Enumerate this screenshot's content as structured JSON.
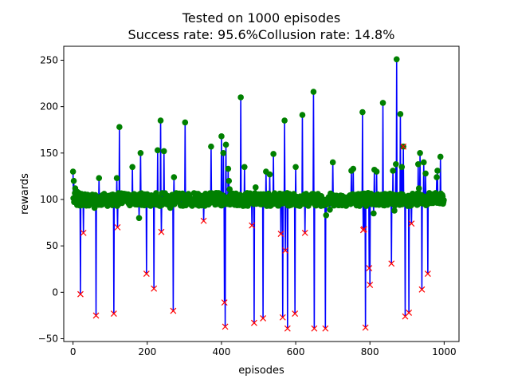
{
  "chart_data": {
    "type": "line",
    "title": [
      "Tested on 1000 episodes",
      "Success rate: 95.6%Collusion rate: 14.8%"
    ],
    "xlabel": "episodes",
    "ylabel": "rewards",
    "xlim": [
      -25,
      1040
    ],
    "ylim": [
      -53,
      265
    ],
    "xticks": [
      0,
      200,
      400,
      600,
      800,
      1000
    ],
    "yticks": [
      -50,
      0,
      50,
      100,
      150,
      200,
      250
    ],
    "grid": false,
    "colors": {
      "line": "#0000ff",
      "success": "#008000",
      "collision": "#ff0000"
    },
    "baseline_reward": 100,
    "spikes": [
      [
        0,
        130
      ],
      [
        2,
        120
      ],
      [
        6,
        112
      ],
      [
        12,
        108
      ],
      [
        20,
        -2
      ],
      [
        30,
        105
      ],
      [
        28,
        64
      ],
      [
        45,
        95
      ],
      [
        58,
        91
      ],
      [
        62,
        -25
      ],
      [
        70,
        123
      ],
      [
        82,
        105
      ],
      [
        95,
        94
      ],
      [
        110,
        -23
      ],
      [
        118,
        123
      ],
      [
        120,
        70
      ],
      [
        125,
        178
      ],
      [
        138,
        105
      ],
      [
        160,
        135
      ],
      [
        178,
        80
      ],
      [
        182,
        150
      ],
      [
        198,
        20
      ],
      [
        203,
        95
      ],
      [
        218,
        4
      ],
      [
        228,
        153
      ],
      [
        236,
        185
      ],
      [
        238,
        65
      ],
      [
        245,
        152
      ],
      [
        262,
        91
      ],
      [
        270,
        -20
      ],
      [
        272,
        124
      ],
      [
        302,
        183
      ],
      [
        310,
        96
      ],
      [
        352,
        77
      ],
      [
        372,
        157
      ],
      [
        400,
        168
      ],
      [
        405,
        150
      ],
      [
        408,
        -11
      ],
      [
        410,
        -37
      ],
      [
        412,
        159
      ],
      [
        418,
        133
      ],
      [
        420,
        120
      ],
      [
        422,
        111
      ],
      [
        452,
        210
      ],
      [
        462,
        135
      ],
      [
        482,
        72
      ],
      [
        488,
        -33
      ],
      [
        492,
        113
      ],
      [
        512,
        -28
      ],
      [
        520,
        130
      ],
      [
        530,
        127
      ],
      [
        540,
        149
      ],
      [
        560,
        63
      ],
      [
        565,
        -27
      ],
      [
        570,
        185
      ],
      [
        572,
        45
      ],
      [
        578,
        -39
      ],
      [
        598,
        -23
      ],
      [
        600,
        135
      ],
      [
        618,
        191
      ],
      [
        625,
        64
      ],
      [
        648,
        216
      ],
      [
        650,
        -39
      ],
      [
        665,
        97
      ],
      [
        680,
        -39
      ],
      [
        682,
        83
      ],
      [
        692,
        89
      ],
      [
        700,
        140
      ],
      [
        745,
        96
      ],
      [
        750,
        131
      ],
      [
        755,
        133
      ],
      [
        780,
        194
      ],
      [
        782,
        67
      ],
      [
        784,
        68
      ],
      [
        788,
        -38
      ],
      [
        790,
        93
      ],
      [
        795,
        107
      ],
      [
        798,
        26
      ],
      [
        800,
        8
      ],
      [
        810,
        85
      ],
      [
        812,
        132
      ],
      [
        818,
        130
      ],
      [
        835,
        204
      ],
      [
        855,
        106
      ],
      [
        858,
        31
      ],
      [
        862,
        131
      ],
      [
        866,
        88
      ],
      [
        870,
        138
      ],
      [
        872,
        251
      ],
      [
        878,
        96
      ],
      [
        882,
        192
      ],
      [
        886,
        135
      ],
      [
        890,
        157
      ],
      [
        892,
        103
      ],
      [
        895,
        -26
      ],
      [
        898,
        97
      ],
      [
        905,
        -22
      ],
      [
        912,
        74
      ],
      [
        925,
        96
      ],
      [
        930,
        138
      ],
      [
        932,
        112
      ],
      [
        935,
        150
      ],
      [
        940,
        3
      ],
      [
        945,
        140
      ],
      [
        950,
        128
      ],
      [
        956,
        20
      ],
      [
        980,
        124
      ],
      [
        982,
        131
      ],
      [
        990,
        146
      ],
      [
        992,
        96
      ]
    ],
    "pink_marks": [
      [
        890,
        157
      ]
    ]
  }
}
